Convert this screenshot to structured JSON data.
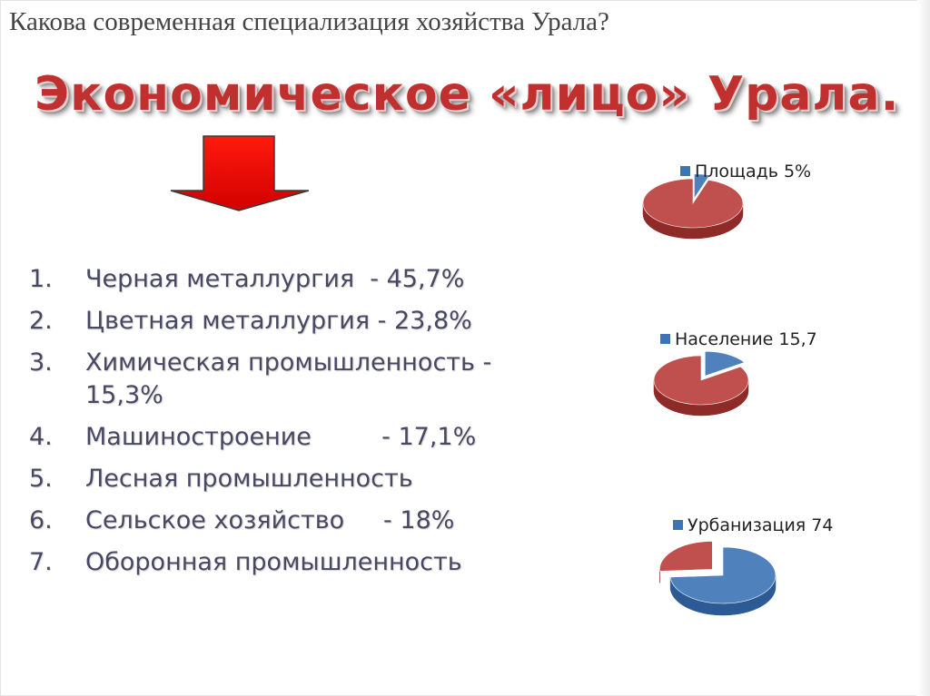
{
  "question": "Какова современная специализация хозяйства Урала?",
  "headline": "Экономическое «лицо» Урала.",
  "icons": {
    "arrow": "down-arrow-icon"
  },
  "colors": {
    "red": "#c0504d",
    "red_dark": "#8e2a27",
    "blue": "#4f81bd",
    "blue_dark": "#2c5a94",
    "text": "#494863",
    "headline": "#c0302f"
  },
  "sectors": [
    {
      "num": "1.",
      "text": "Черная металлургия  - 45,7%"
    },
    {
      "num": "2.",
      "text": "Цветная металлургия - 23,8%"
    },
    {
      "num": "3.",
      "text": "Химическая промышленность - 15,3%"
    },
    {
      "num": "4.",
      "text": "Машиностроение         - 17,1%"
    },
    {
      "num": "5.",
      "text": "Лесная промышленность"
    },
    {
      "num": "6.",
      "text": "Сельское хозяйство     - 18%"
    },
    {
      "num": "7.",
      "text": "Оборонная промышленность"
    }
  ],
  "chart_data": [
    {
      "type": "pie",
      "legend": "Площадь  5%",
      "legend_position": "top-right",
      "values": [
        5,
        95
      ]
    },
    {
      "type": "pie",
      "legend": "Население  15,7",
      "legend_position": "top-right",
      "values": [
        15.7,
        84.3
      ]
    },
    {
      "type": "pie",
      "legend": "Урбанизация   74",
      "legend_position": "top-right",
      "values": [
        74,
        26
      ]
    }
  ]
}
